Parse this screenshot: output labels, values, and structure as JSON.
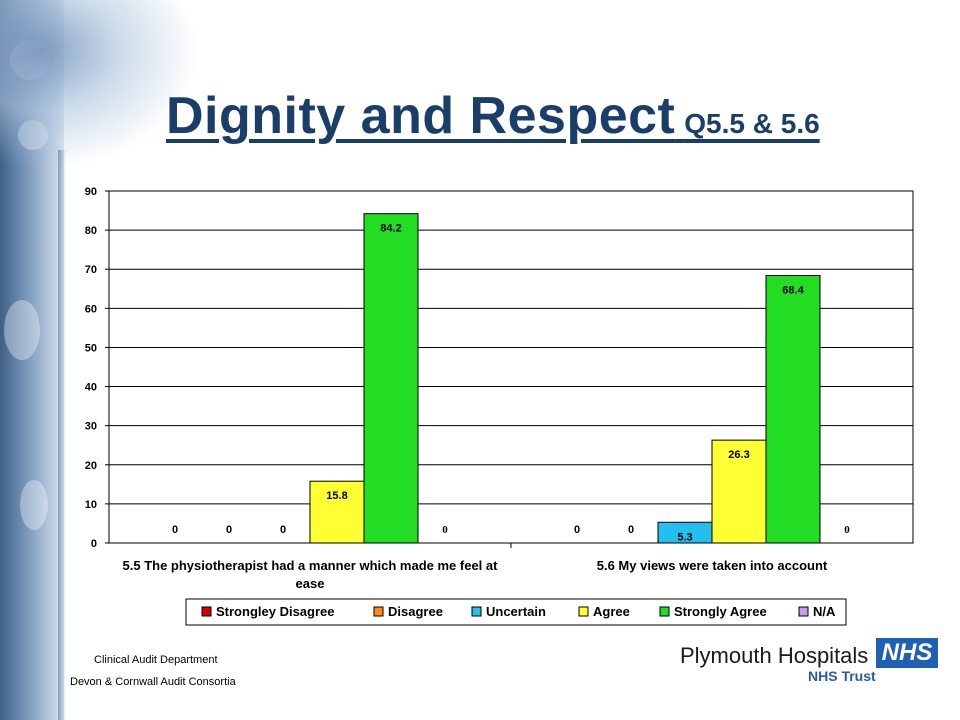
{
  "title": {
    "main": "Dignity and Respect",
    "sub": "Q5.5 & 5.6"
  },
  "footer": {
    "line1": "Clinical Audit Department",
    "line2": "Devon & Cornwall Audit Consortia"
  },
  "logo": {
    "name": "Plymouth Hospitals",
    "sub": "NHS Trust",
    "badge": "NHS"
  },
  "colors": {
    "title": "#1a3e6a",
    "nhs_blue": "#1f5fb4"
  },
  "chart_data": {
    "type": "bar",
    "categories": [
      "5.5 The physiotherapist had a manner which made me feel at ease",
      "5.6 My views were taken into account"
    ],
    "category_lines": [
      [
        "5.5 The physiotherapist had a manner which made me feel at",
        "ease"
      ],
      [
        "5.6 My views were taken into account"
      ]
    ],
    "series": [
      {
        "name": "Strongley Disagree",
        "color": "#d40000",
        "values": [
          0,
          0
        ],
        "labels": [
          "0",
          "0"
        ]
      },
      {
        "name": "Disagree",
        "color": "#ff8a1a",
        "values": [
          0,
          0
        ],
        "labels": [
          "0",
          "0"
        ]
      },
      {
        "name": "Uncertain",
        "color": "#22bff0",
        "values": [
          0,
          5.3
        ],
        "labels": [
          "0",
          "5.3"
        ]
      },
      {
        "name": "Agree",
        "color": "#ffff33",
        "values": [
          15.8,
          26.3
        ],
        "labels": [
          "15.8",
          "26.3"
        ]
      },
      {
        "name": "Strongly Agree",
        "color": "#22dd22",
        "values": [
          84.2,
          68.4
        ],
        "labels": [
          "84.2",
          "68.4"
        ]
      },
      {
        "name": "N/A",
        "color": "#c89bf0",
        "values": [
          0,
          0
        ],
        "labels": [
          "0",
          "0"
        ]
      }
    ],
    "ylim": [
      0,
      90
    ],
    "yticks": [
      "0",
      "10",
      "20",
      "30",
      "40",
      "50",
      "60",
      "70",
      "80",
      "90"
    ],
    "grid": true,
    "legend": "bottom"
  }
}
